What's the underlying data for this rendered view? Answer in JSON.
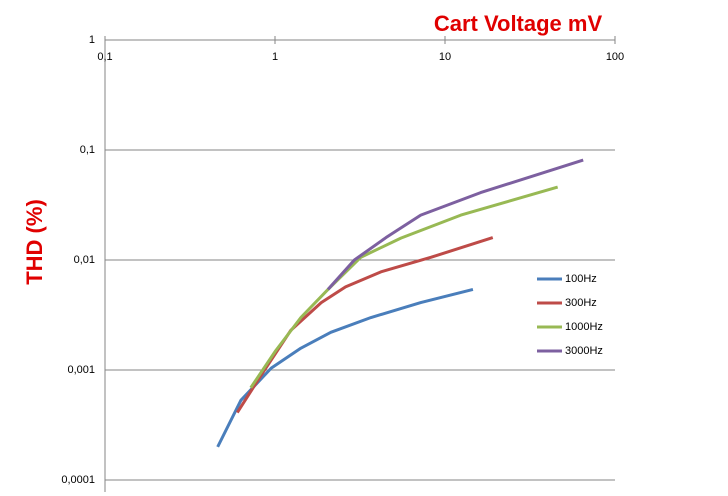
{
  "chart_data": {
    "type": "line",
    "title": "Cart Voltage mV",
    "y_label": "THD (%)",
    "log_x": true,
    "log_y": true,
    "grid": true,
    "x_axis_position": "top",
    "legend": "right",
    "xlim": [
      0.1,
      100
    ],
    "xticks": [
      {
        "value": 0.1,
        "label": "0,1"
      },
      1,
      10,
      100
    ],
    "ylim": [
      0.0001,
      1
    ],
    "yticks": [
      {
        "value": 0.0001,
        "label": "0,0001"
      },
      {
        "value": 0.001,
        "label": "0,001"
      },
      {
        "value": 0.01,
        "label": "0,01"
      },
      {
        "value": 0.1,
        "label": "0,1"
      },
      1
    ],
    "series": [
      {
        "name": "100Hz",
        "color": "#4a7ebb",
        "x": [
          0.46,
          0.63,
          0.95,
          1.42,
          2.13,
          3.67,
          7.2,
          14.6
        ],
        "values": [
          0.0002,
          0.00053,
          0.00104,
          0.00158,
          0.0022,
          0.003,
          0.0041,
          0.0054
        ]
      },
      {
        "name": "300Hz",
        "color": "#be4b48",
        "x": [
          0.6,
          0.83,
          1.24,
          1.87,
          2.6,
          4.2,
          8.3,
          19.1
        ],
        "values": [
          0.00041,
          0.0009,
          0.0023,
          0.0041,
          0.0057,
          0.0078,
          0.0106,
          0.016
        ]
      },
      {
        "name": "1000Hz",
        "color": "#98b954",
        "x": [
          0.72,
          1.01,
          1.42,
          2.05,
          3.2,
          5.5,
          12.4,
          46
        ],
        "values": [
          0.00069,
          0.0015,
          0.003,
          0.0054,
          0.0106,
          0.0158,
          0.0256,
          0.046
        ]
      },
      {
        "name": "3000Hz",
        "color": "#7d60a0",
        "x": [
          2.05,
          2.93,
          4.5,
          7.2,
          16.2,
          65
        ],
        "values": [
          0.0054,
          0.01,
          0.016,
          0.0256,
          0.041,
          0.081
        ]
      }
    ]
  }
}
